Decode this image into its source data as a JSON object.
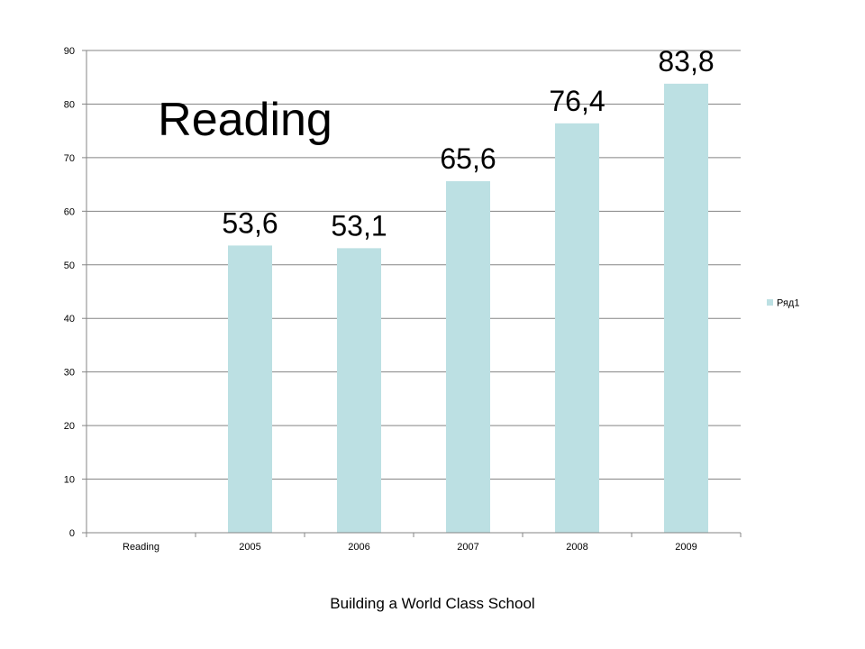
{
  "chart_data": {
    "type": "bar",
    "title": "Reading",
    "categories": [
      "Reading",
      "2005",
      "2006",
      "2007",
      "2008",
      "2009"
    ],
    "series": [
      {
        "name": "Ряд1",
        "values": [
          null,
          53.6,
          53.1,
          65.6,
          76.4,
          83.8
        ],
        "data_labels": [
          "",
          "53,6",
          "53,1",
          "65,6",
          "76,4",
          "83,8"
        ],
        "color": "#BCE0E3"
      }
    ],
    "ylim": [
      0,
      90
    ],
    "yticks": [
      "0",
      "10",
      "20",
      "30",
      "40",
      "50",
      "60",
      "70",
      "80",
      "90"
    ],
    "xlabel": "",
    "ylabel": "",
    "grid": true,
    "legend_position": "right",
    "colors": {
      "bar": "#BCE0E3",
      "grid": "#858585",
      "axis": "#858585"
    }
  },
  "footer": {
    "text": "Building a World Class School"
  }
}
